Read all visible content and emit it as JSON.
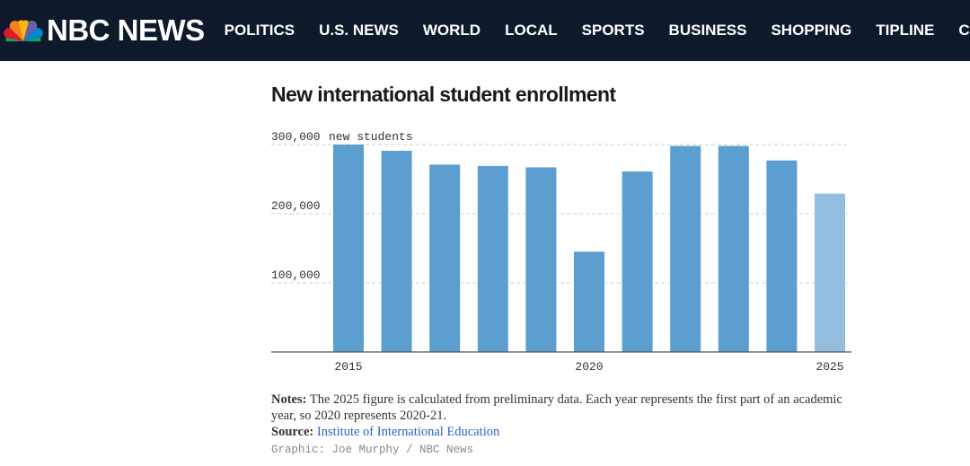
{
  "header": {
    "logo_text": "NBC NEWS",
    "nav_items": [
      "POLITICS",
      "U.S. NEWS",
      "WORLD",
      "LOCAL",
      "SPORTS",
      "BUSINESS",
      "SHOPPING",
      "TIPLINE",
      "CULTURE"
    ],
    "background_color": "#0e1a2b"
  },
  "chart_data": {
    "type": "bar",
    "title": "New international student enrollment",
    "ylabel": "",
    "y_unit_label": "new students",
    "ylim": [
      0,
      300000
    ],
    "y_ticks": [
      {
        "value": 100000,
        "label": "100,000"
      },
      {
        "value": 200000,
        "label": "200,000"
      },
      {
        "value": 300000,
        "label": "300,000"
      }
    ],
    "categories": [
      "2015",
      "2016",
      "2017",
      "2018",
      "2019",
      "2020",
      "2021",
      "2022",
      "2023",
      "2024",
      "2025"
    ],
    "x_tick_labels": [
      "2015",
      "2020",
      "2025"
    ],
    "values": [
      300000,
      291000,
      271000,
      269000,
      267000,
      145000,
      261000,
      298000,
      298000,
      277000,
      229000
    ],
    "highlight": {
      "category": "2025",
      "note": "preliminary"
    },
    "colors": {
      "bar": "#5b9ecf",
      "bar_preliminary": "#94bee0",
      "grid": "#cccccc",
      "axis": "#555555"
    },
    "grid": true
  },
  "notes": {
    "notes_label": "Notes:",
    "notes_text": "The 2025 figure is calculated from preliminary data. Each year represents the first part of an academic year, so 2020 represents 2020-21.",
    "source_label": "Source:",
    "source_text": "Institute of International Education",
    "credit": "Graphic: Joe Murphy / NBC News"
  }
}
